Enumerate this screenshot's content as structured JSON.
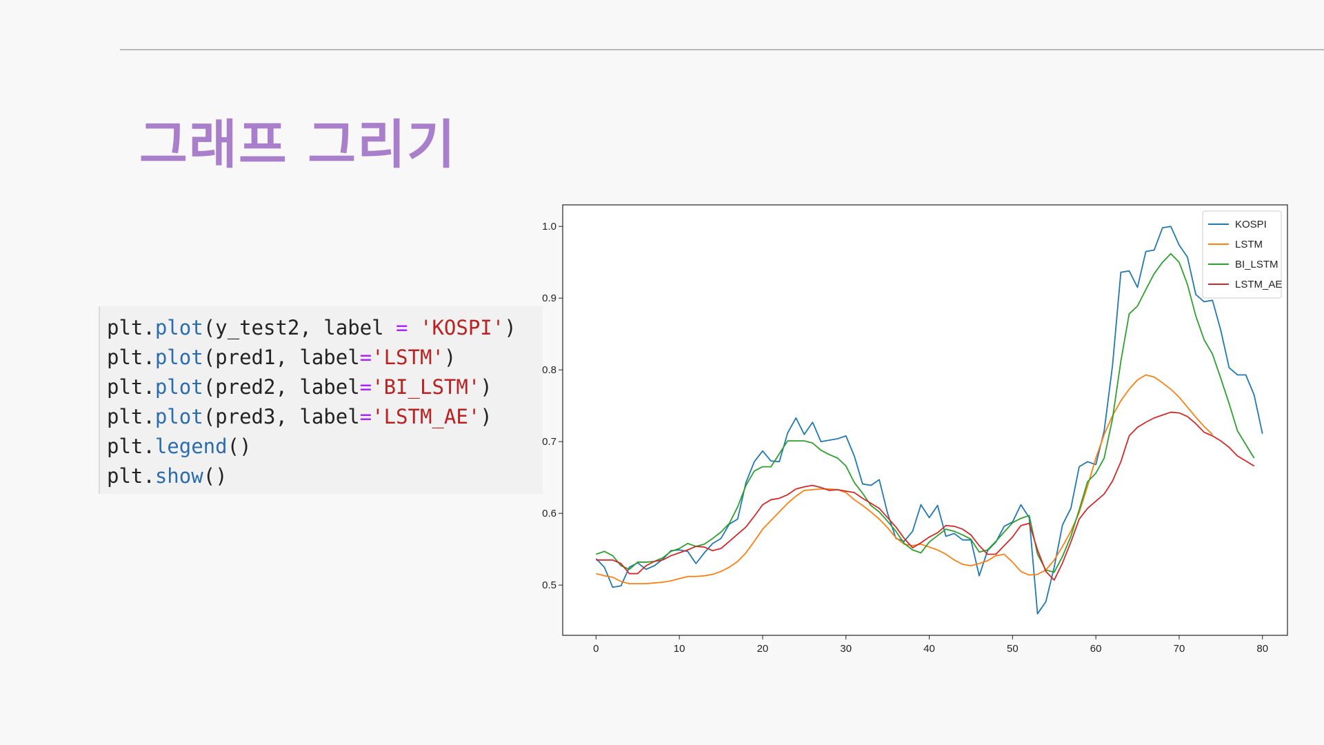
{
  "slide": {
    "title": "그래프 그리기"
  },
  "code": {
    "lines": [
      [
        {
          "t": "plt.",
          "c": "txt"
        },
        {
          "t": "plot",
          "c": "fn"
        },
        {
          "t": "(y_test2, label ",
          "c": "txt"
        },
        {
          "t": "=",
          "c": "op"
        },
        {
          "t": " ",
          "c": "txt"
        },
        {
          "t": "'KOSPI'",
          "c": "str"
        },
        {
          "t": ")",
          "c": "txt"
        }
      ],
      [
        {
          "t": "plt.",
          "c": "txt"
        },
        {
          "t": "plot",
          "c": "fn"
        },
        {
          "t": "(pred1, label",
          "c": "txt"
        },
        {
          "t": "=",
          "c": "op"
        },
        {
          "t": "'LSTM'",
          "c": "str"
        },
        {
          "t": ")",
          "c": "txt"
        }
      ],
      [
        {
          "t": "plt.",
          "c": "txt"
        },
        {
          "t": "plot",
          "c": "fn"
        },
        {
          "t": "(pred2, label",
          "c": "txt"
        },
        {
          "t": "=",
          "c": "op"
        },
        {
          "t": "'BI_LSTM'",
          "c": "str"
        },
        {
          "t": ")",
          "c": "txt"
        }
      ],
      [
        {
          "t": "plt.",
          "c": "txt"
        },
        {
          "t": "plot",
          "c": "fn"
        },
        {
          "t": "(pred3, label",
          "c": "txt"
        },
        {
          "t": "=",
          "c": "op"
        },
        {
          "t": "'LSTM_AE'",
          "c": "str"
        },
        {
          "t": ")",
          "c": "txt"
        }
      ],
      [
        {
          "t": "plt.",
          "c": "txt"
        },
        {
          "t": "legend",
          "c": "fn"
        },
        {
          "t": "()",
          "c": "txt"
        }
      ],
      [
        {
          "t": "plt.",
          "c": "txt"
        },
        {
          "t": "show",
          "c": "fn"
        },
        {
          "t": "()",
          "c": "txt"
        }
      ]
    ]
  },
  "chart_data": {
    "type": "line",
    "title": "",
    "xlabel": "",
    "ylabel": "",
    "xlim": [
      -4,
      83
    ],
    "ylim": [
      0.43,
      1.03
    ],
    "xticks": [
      0,
      10,
      20,
      30,
      40,
      50,
      60,
      70,
      80
    ],
    "yticks": [
      0.5,
      0.6,
      0.7,
      0.8,
      0.9,
      1.0
    ],
    "ytick_labels": [
      "0.5",
      "0.6",
      "0.7",
      "0.8",
      "0.9",
      "1.0"
    ],
    "grid": false,
    "legend_position": "top-right",
    "series": [
      {
        "name": "KOSPI",
        "color": "#1f77b4",
        "values": [
          0.537,
          0.525,
          0.497,
          0.499,
          0.525,
          0.531,
          0.522,
          0.527,
          0.536,
          0.548,
          0.549,
          0.547,
          0.53,
          0.545,
          0.558,
          0.565,
          0.585,
          0.592,
          0.643,
          0.672,
          0.687,
          0.673,
          0.672,
          0.712,
          0.733,
          0.71,
          0.727,
          0.7,
          0.702,
          0.704,
          0.708,
          0.68,
          0.641,
          0.639,
          0.647,
          0.6,
          0.565,
          0.561,
          0.575,
          0.612,
          0.594,
          0.611,
          0.568,
          0.572,
          0.563,
          0.563,
          0.513,
          0.548,
          0.56,
          0.582,
          0.588,
          0.612,
          0.594,
          0.46,
          0.477,
          0.525,
          0.584,
          0.607,
          0.665,
          0.672,
          0.668,
          0.715,
          0.806,
          0.936,
          0.938,
          0.915,
          0.965,
          0.967,
          0.998,
          1.0,
          0.974,
          0.957,
          0.905,
          0.895,
          0.897,
          0.855,
          0.803,
          0.793,
          0.793,
          0.765,
          0.711
        ]
      },
      {
        "name": "LSTM",
        "color": "#ff7f0e",
        "values": [
          0.516,
          0.513,
          0.511,
          0.505,
          0.502,
          0.502,
          0.502,
          0.503,
          0.504,
          0.506,
          0.509,
          0.512,
          0.512,
          0.513,
          0.515,
          0.519,
          0.525,
          0.533,
          0.545,
          0.561,
          0.578,
          0.59,
          0.602,
          0.614,
          0.624,
          0.632,
          0.633,
          0.634,
          0.634,
          0.633,
          0.629,
          0.619,
          0.611,
          0.602,
          0.592,
          0.58,
          0.566,
          0.557,
          0.555,
          0.557,
          0.553,
          0.549,
          0.543,
          0.535,
          0.529,
          0.527,
          0.53,
          0.534,
          0.541,
          0.543,
          0.532,
          0.519,
          0.514,
          0.515,
          0.521,
          0.535,
          0.554,
          0.575,
          0.601,
          0.638,
          0.677,
          0.71,
          0.736,
          0.757,
          0.773,
          0.786,
          0.793,
          0.79,
          0.782,
          0.773,
          0.762,
          0.748,
          0.734,
          0.721,
          0.71
        ]
      },
      {
        "name": "BI_LSTM",
        "color": "#2ca02c",
        "values": [
          0.543,
          0.547,
          0.541,
          0.527,
          0.522,
          0.532,
          0.532,
          0.533,
          0.538,
          0.547,
          0.551,
          0.558,
          0.554,
          0.557,
          0.565,
          0.574,
          0.586,
          0.609,
          0.639,
          0.659,
          0.665,
          0.665,
          0.683,
          0.701,
          0.701,
          0.701,
          0.698,
          0.688,
          0.682,
          0.677,
          0.666,
          0.643,
          0.628,
          0.611,
          0.602,
          0.589,
          0.575,
          0.558,
          0.549,
          0.545,
          0.56,
          0.569,
          0.578,
          0.575,
          0.57,
          0.564,
          0.546,
          0.549,
          0.561,
          0.574,
          0.587,
          0.593,
          0.597,
          0.543,
          0.521,
          0.518,
          0.54,
          0.568,
          0.605,
          0.644,
          0.656,
          0.677,
          0.732,
          0.812,
          0.878,
          0.889,
          0.912,
          0.934,
          0.95,
          0.962,
          0.95,
          0.919,
          0.875,
          0.842,
          0.822,
          0.788,
          0.753,
          0.715,
          0.696,
          0.677
        ]
      },
      {
        "name": "LSTM_AE",
        "color": "#d62728",
        "values": [
          0.535,
          0.535,
          0.535,
          0.53,
          0.516,
          0.516,
          0.527,
          0.533,
          0.535,
          0.541,
          0.545,
          0.549,
          0.554,
          0.553,
          0.548,
          0.551,
          0.561,
          0.571,
          0.581,
          0.596,
          0.612,
          0.619,
          0.621,
          0.626,
          0.634,
          0.637,
          0.639,
          0.636,
          0.632,
          0.633,
          0.631,
          0.629,
          0.621,
          0.614,
          0.607,
          0.594,
          0.581,
          0.565,
          0.552,
          0.559,
          0.567,
          0.573,
          0.583,
          0.582,
          0.578,
          0.57,
          0.555,
          0.543,
          0.543,
          0.555,
          0.567,
          0.583,
          0.586,
          0.549,
          0.519,
          0.507,
          0.531,
          0.56,
          0.592,
          0.607,
          0.617,
          0.627,
          0.645,
          0.672,
          0.708,
          0.72,
          0.727,
          0.733,
          0.737,
          0.741,
          0.74,
          0.735,
          0.725,
          0.713,
          0.708,
          0.701,
          0.692,
          0.68,
          0.673,
          0.666
        ]
      }
    ]
  }
}
